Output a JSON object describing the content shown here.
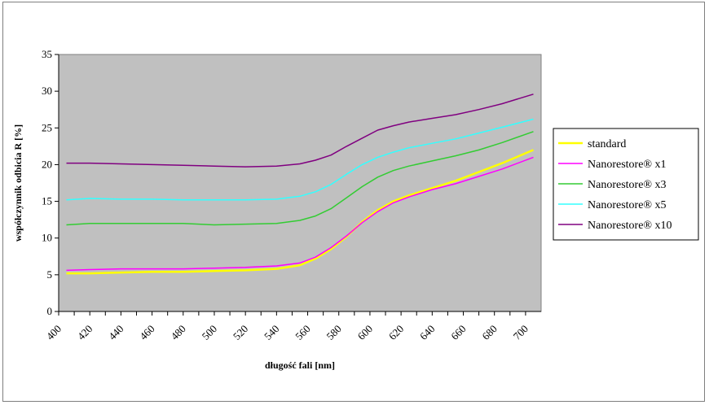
{
  "chart_data": {
    "type": "line",
    "title": "",
    "xlabel": "długość fali [nm]",
    "ylabel": "współczynnik odbicia R [%]",
    "xlim": [
      400,
      710
    ],
    "ylim": [
      0,
      35
    ],
    "x_ticks": [
      "400",
      "420",
      "440",
      "460",
      "480",
      "500",
      "520",
      "540",
      "560",
      "580",
      "600",
      "620",
      "640",
      "660",
      "680",
      "700"
    ],
    "y_ticks": [
      "0",
      "5",
      "10",
      "15",
      "20",
      "25",
      "30",
      "35"
    ],
    "grid": false,
    "plot_background": "#c0c0c0",
    "legend_position": "right",
    "x": [
      405,
      420,
      440,
      460,
      480,
      500,
      520,
      540,
      555,
      565,
      575,
      585,
      595,
      605,
      615,
      625,
      640,
      655,
      670,
      685,
      705
    ],
    "series": [
      {
        "name": "standard",
        "color": "#ffff00",
        "values": [
          5.2,
          5.2,
          5.3,
          5.4,
          5.4,
          5.5,
          5.6,
          5.8,
          6.3,
          7.2,
          8.5,
          10.2,
          12.2,
          13.8,
          15.0,
          15.8,
          16.8,
          17.8,
          19.0,
          20.2,
          22.0
        ]
      },
      {
        "name": "Nanorestore® x1",
        "color": "#ff00ff",
        "values": [
          5.6,
          5.7,
          5.8,
          5.8,
          5.8,
          5.9,
          6.0,
          6.2,
          6.6,
          7.4,
          8.7,
          10.3,
          12.1,
          13.6,
          14.8,
          15.6,
          16.6,
          17.4,
          18.4,
          19.4,
          21.0
        ]
      },
      {
        "name": "Nanorestore® x3",
        "color": "#33cc33",
        "values": [
          11.8,
          12.0,
          12.0,
          12.0,
          12.0,
          11.8,
          11.9,
          12.0,
          12.4,
          13.0,
          14.0,
          15.5,
          17.0,
          18.3,
          19.2,
          19.8,
          20.5,
          21.2,
          22.0,
          23.0,
          24.5
        ]
      },
      {
        "name": "Nanorestore® x5",
        "color": "#33ffff",
        "values": [
          15.2,
          15.4,
          15.3,
          15.3,
          15.2,
          15.2,
          15.2,
          15.3,
          15.7,
          16.3,
          17.3,
          18.7,
          20.0,
          21.0,
          21.7,
          22.3,
          22.9,
          23.5,
          24.3,
          25.1,
          26.2
        ]
      },
      {
        "name": "Nanorestore® x10",
        "color": "#800080",
        "values": [
          20.2,
          20.2,
          20.1,
          20.0,
          19.9,
          19.8,
          19.7,
          19.8,
          20.1,
          20.6,
          21.3,
          22.5,
          23.6,
          24.7,
          25.3,
          25.8,
          26.3,
          26.8,
          27.5,
          28.3,
          29.6
        ]
      }
    ]
  }
}
